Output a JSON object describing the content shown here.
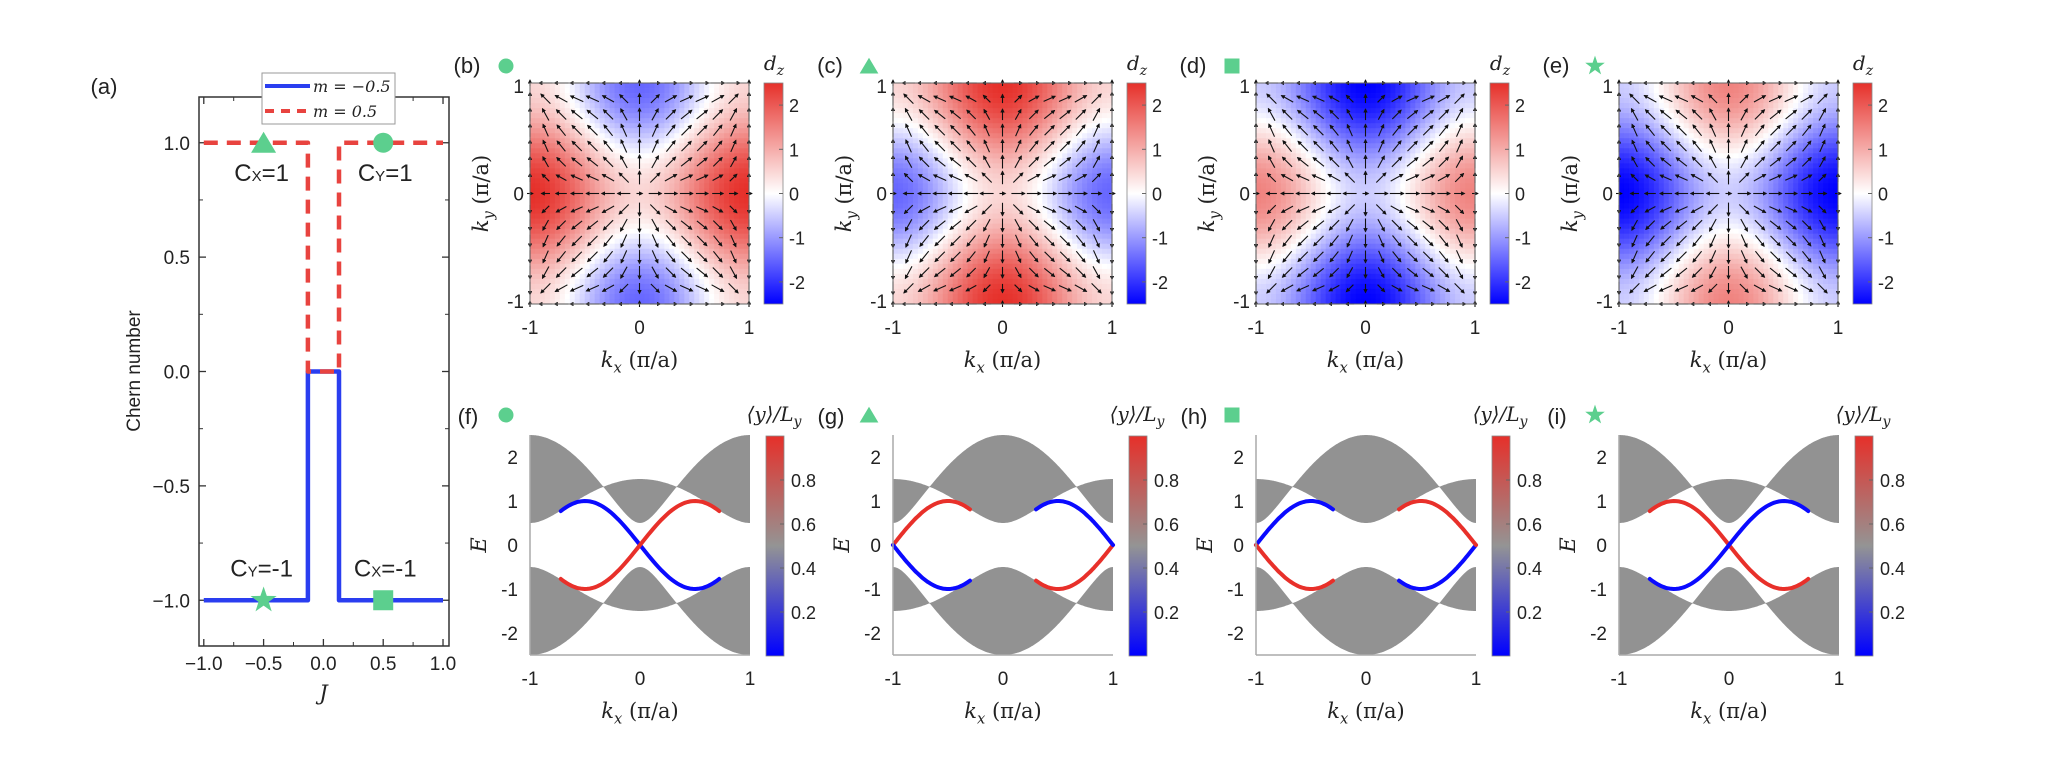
{
  "colors": {
    "marker": "#5ccf8e",
    "blue_line": "#2a3ef0",
    "red_dash": "#e8433f",
    "bulk_gray": "#929292",
    "edge_red": "#e8302a",
    "edge_blue": "#0a0aff"
  },
  "chart_data": [
    {
      "panel": "(a)",
      "type": "line",
      "xlabel": "J",
      "ylabel": "Chern number",
      "xlim": [
        -1.04,
        1.05
      ],
      "ylim": [
        -1.2,
        1.2
      ],
      "xticks": [
        "-1.0",
        "-0.5",
        "0.0",
        "0.5",
        "1.0"
      ],
      "yticks": [
        "-1.0",
        "-0.5",
        "0.0",
        "0.5",
        "1.0"
      ],
      "xtick_values": [
        -1,
        -0.5,
        0,
        0.5,
        1
      ],
      "ytick_values": [
        -1,
        -0.5,
        0,
        0.5,
        1
      ],
      "legend_position": "top-center",
      "series": [
        {
          "name": "m = −0.5",
          "style": "solid",
          "color": "#2a3ef0",
          "x": [
            -1,
            -0.13,
            -0.13,
            0.13,
            0.13,
            1
          ],
          "y": [
            -1,
            -1,
            0,
            0,
            -1,
            -1
          ]
        },
        {
          "name": "m = 0.5",
          "style": "dashed",
          "color": "#e8433f",
          "x": [
            -1,
            -0.13,
            -0.13,
            0.13,
            0.13,
            1
          ],
          "y": [
            1,
            1,
            0,
            0,
            1,
            1
          ]
        }
      ],
      "markers": [
        {
          "shape": "triangle",
          "x": -0.5,
          "y": 1
        },
        {
          "shape": "circle",
          "x": 0.5,
          "y": 1
        },
        {
          "shape": "star",
          "x": -0.5,
          "y": -1
        },
        {
          "shape": "square",
          "x": 0.5,
          "y": -1
        }
      ],
      "annotations": [
        {
          "main": "C",
          "sub": "X",
          "rest": "=1",
          "x": -0.5,
          "y": 1
        },
        {
          "main": "C",
          "sub": "Y",
          "rest": "=1",
          "x": 0.5,
          "y": 1
        },
        {
          "main": "C",
          "sub": "Y",
          "rest": "=-1",
          "x": -0.5,
          "y": -1
        },
        {
          "main": "C",
          "sub": "X",
          "rest": "=-1",
          "x": 0.5,
          "y": -1
        }
      ]
    },
    {
      "group": "dz-maps",
      "type": "heatmap",
      "xlabel_var": "k",
      "xlabel_sub": "x",
      "xlabel_unit": "(π/a)",
      "ylabel_var": "k",
      "ylabel_sub": "y",
      "ylabel_unit": "(π/a)",
      "xlim": [
        -1,
        1
      ],
      "ylim": [
        -1,
        1
      ],
      "xticks": [
        "-1",
        "0",
        "1"
      ],
      "yticks": [
        "-1",
        "0",
        "1"
      ],
      "colorbar_label_var": "d",
      "colorbar_label_sub": "z",
      "colorbar_range": [
        -2.5,
        2.5
      ],
      "colorbar_ticks": [
        "2",
        "1",
        "0",
        "-1",
        "-2"
      ],
      "colorbar_tick_values": [
        2,
        1,
        0,
        -1,
        -2
      ],
      "vector_field": "in-plane arrows",
      "panels": [
        {
          "label": "(b)",
          "marker": "circle",
          "dz_center": 0.5,
          "dz_kx_edge": 2.5,
          "dz_ky_edge": -1.5
        },
        {
          "label": "(c)",
          "marker": "triangle",
          "dz_center": 0.5,
          "dz_kx_edge": -1.5,
          "dz_ky_edge": 2.5
        },
        {
          "label": "(d)",
          "marker": "square",
          "dz_center": -0.5,
          "dz_kx_edge": 1.5,
          "dz_ky_edge": -2.5
        },
        {
          "label": "(e)",
          "marker": "star",
          "dz_center": -0.5,
          "dz_kx_edge": -2.5,
          "dz_ky_edge": 1.5
        }
      ]
    },
    {
      "group": "edge-spectra",
      "type": "line",
      "xlabel_var": "k",
      "xlabel_sub": "x",
      "xlabel_unit": "(π/a)",
      "ylabel": "E",
      "xlim": [
        -1,
        1
      ],
      "ylim": [
        -2.5,
        2.5
      ],
      "xticks": [
        "-1",
        "0",
        "1"
      ],
      "yticks": [
        "2",
        "1",
        "0",
        "-1",
        "-2"
      ],
      "ytick_values": [
        2,
        1,
        0,
        -1,
        -2
      ],
      "colorbar_label": "⟨y⟩/L",
      "colorbar_label_sub": "y",
      "colorbar_range": [
        0,
        1
      ],
      "colorbar_ticks": [
        "0.8",
        "0.6",
        "0.4",
        "0.2"
      ],
      "colorbar_tick_values": [
        0.8,
        0.6,
        0.4,
        0.2
      ],
      "panels": [
        {
          "label": "(f)",
          "marker": "circle",
          "bulk_E_range_at_kx0": [
            0.5,
            1.5
          ],
          "bulk_E_range_at_kx1": [
            0.5,
            2.5
          ],
          "edge_states": [
            {
              "color": "blue",
              "kx": [
                -0.5,
                0,
                0.5
              ],
              "E": [
                1,
                0,
                -1
              ],
              "kx_range": [
                -0.72,
                0.72
              ]
            },
            {
              "color": "red",
              "kx": [
                -0.5,
                0,
                0.5
              ],
              "E": [
                -1,
                0,
                1
              ],
              "kx_range": [
                -0.72,
                0.72
              ]
            }
          ]
        },
        {
          "label": "(g)",
          "marker": "triangle",
          "bulk_E_range_at_kx0": [
            0.5,
            2.5
          ],
          "bulk_E_range_at_kx1": [
            0.5,
            1.5
          ],
          "edge_states": [
            {
              "color": "red",
              "kx": [
                -0.5,
                0,
                0.5
              ],
              "E": [
                1,
                0,
                -1
              ],
              "kx_range": [
                -1,
                -0.3,
                0.3,
                1
              ]
            },
            {
              "color": "blue",
              "kx": [
                -0.5,
                0,
                0.5
              ],
              "E": [
                -1,
                0,
                1
              ],
              "kx_range": [
                -1,
                -0.3,
                0.3,
                1
              ]
            }
          ]
        },
        {
          "label": "(h)",
          "marker": "square",
          "bulk_E_range_at_kx0": [
            0.5,
            2.5
          ],
          "bulk_E_range_at_kx1": [
            0.5,
            1.5
          ],
          "edge_states": [
            {
              "color": "blue",
              "kx": [
                -0.5,
                0,
                0.5
              ],
              "E": [
                1,
                0,
                -1
              ],
              "kx_range": [
                -1,
                -0.3,
                0.3,
                1
              ]
            },
            {
              "color": "red",
              "kx": [
                -0.5,
                0,
                0.5
              ],
              "E": [
                -1,
                0,
                1
              ],
              "kx_range": [
                -1,
                -0.3,
                0.3,
                1
              ]
            }
          ]
        },
        {
          "label": "(i)",
          "marker": "star",
          "bulk_E_range_at_kx0": [
            0.5,
            1.5
          ],
          "bulk_E_range_at_kx1": [
            0.5,
            2.5
          ],
          "edge_states": [
            {
              "color": "red",
              "kx": [
                -0.5,
                0,
                0.5
              ],
              "E": [
                1,
                0,
                -1
              ],
              "kx_range": [
                -0.72,
                0.72
              ]
            },
            {
              "color": "blue",
              "kx": [
                -0.5,
                0,
                0.5
              ],
              "E": [
                -1,
                0,
                1
              ],
              "kx_range": [
                -0.72,
                0.72
              ]
            }
          ]
        }
      ]
    }
  ]
}
